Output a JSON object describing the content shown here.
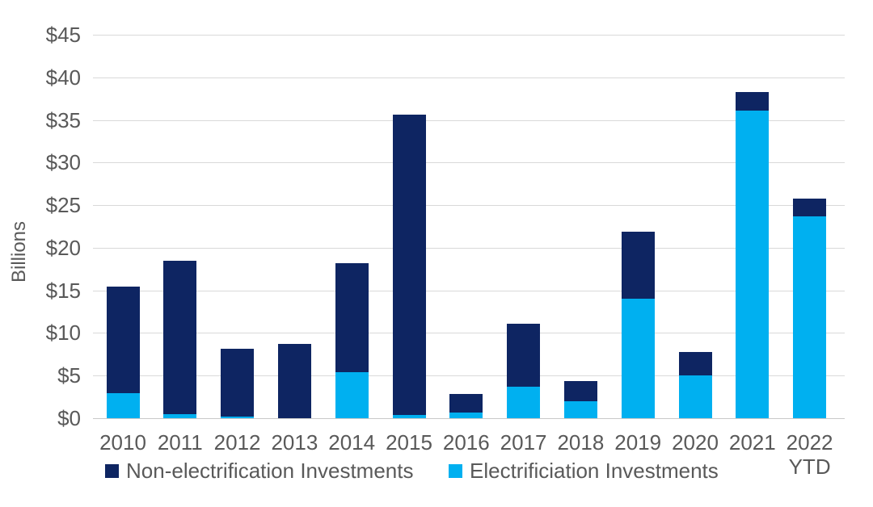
{
  "chart_data": {
    "type": "bar",
    "stacked": true,
    "title": "",
    "ylabel": "Billions",
    "ylim": [
      0,
      45
    ],
    "ytick_step": 5,
    "ytick_labels": [
      "$0",
      "$5",
      "$10",
      "$15",
      "$20",
      "$25",
      "$30",
      "$35",
      "$40",
      "$45"
    ],
    "grid": true,
    "legend_position": "bottom",
    "categories": [
      "2010",
      "2011",
      "2012",
      "2013",
      "2014",
      "2015",
      "2016",
      "2017",
      "2018",
      "2019",
      "2020",
      "2021",
      "2022"
    ],
    "category_sublabels": [
      "",
      "",
      "",
      "",
      "",
      "",
      "",
      "",
      "",
      "",
      "",
      "",
      "YTD"
    ],
    "series": [
      {
        "name": "Non-electrification Investments",
        "color": "#0e2562",
        "values": [
          12.5,
          18.0,
          7.9,
          8.7,
          12.8,
          35.2,
          2.1,
          7.4,
          2.4,
          7.9,
          2.8,
          2.2,
          2.1
        ]
      },
      {
        "name": "Electrificiation Investments",
        "color": "#00b0f0",
        "values": [
          2.9,
          0.5,
          0.2,
          0.0,
          5.4,
          0.4,
          0.7,
          3.7,
          2.0,
          14.0,
          5.0,
          36.1,
          23.7
        ]
      }
    ],
    "totals": [
      15.4,
      18.5,
      8.1,
      8.7,
      18.2,
      35.6,
      2.8,
      11.1,
      4.4,
      21.9,
      7.8,
      38.3,
      25.8
    ]
  },
  "colors": {
    "background": "#ffffff",
    "gridline": "#d9d9d9",
    "axis_line": "#c9c9c9",
    "axis_text": "#595959",
    "non_electrification": "#0e2562",
    "electrification": "#00b0f0"
  }
}
